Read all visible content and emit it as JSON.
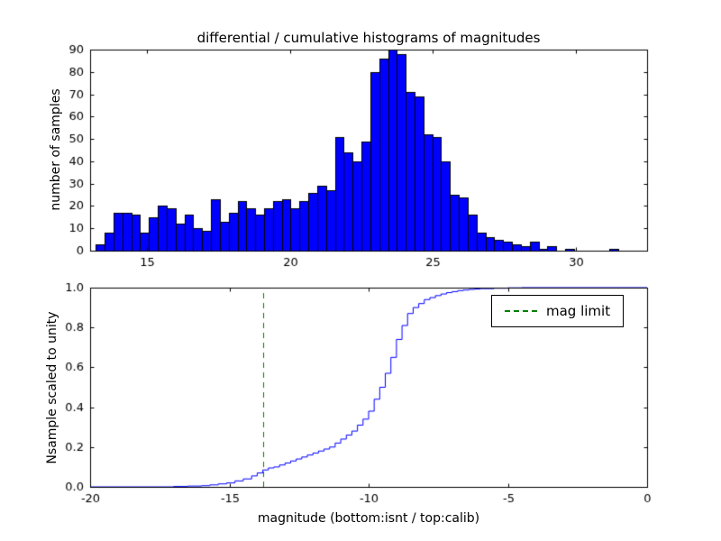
{
  "figure": {
    "title": "differential / cumulative histograms of magnitudes",
    "background": "#ffffff",
    "axes_color": "#000000"
  },
  "chart_data": [
    {
      "type": "bar",
      "role": "top-differential-histogram",
      "title": "differential / cumulative histograms of magnitudes",
      "ylabel": "number of samples",
      "xlim": [
        13,
        32.5
      ],
      "ylim": [
        0,
        90
      ],
      "xticks": [
        15,
        20,
        25,
        30
      ],
      "xtick_labels": [
        "15",
        "20",
        "25",
        "30"
      ],
      "yticks": [
        0,
        10,
        20,
        30,
        40,
        50,
        60,
        70,
        80,
        90
      ],
      "ytick_labels": [
        "0",
        "10",
        "20",
        "30",
        "40",
        "50",
        "60",
        "70",
        "80",
        "90"
      ],
      "bin_start": 13.2,
      "bin_width": 0.31,
      "counts": [
        3,
        8,
        17,
        17,
        16,
        8,
        15,
        20,
        19,
        12,
        16,
        10,
        9,
        23,
        13,
        17,
        22,
        19,
        16,
        19,
        22,
        23,
        19,
        22,
        26,
        29,
        27,
        51,
        44,
        40,
        49,
        80,
        86,
        90,
        88,
        71,
        69,
        52,
        51,
        40,
        25,
        24,
        16,
        8,
        6,
        5,
        4,
        3,
        2,
        4,
        1,
        2,
        0,
        1,
        0,
        0,
        0,
        0,
        1,
        0
      ],
      "bar_color": "#0000ff",
      "bar_edge_color": "#000000",
      "grid": false
    },
    {
      "type": "line",
      "role": "bottom-cumulative-histogram",
      "ylabel": "Nsample scaled to unity",
      "xlabel": "magnitude (bottom:isnt / top:calib)",
      "xlim": [
        -20,
        0
      ],
      "ylim": [
        0,
        1.0
      ],
      "xticks": [
        -20,
        -15,
        -10,
        -5,
        0
      ],
      "xtick_labels": [
        "-20",
        "-15",
        "-10",
        "-5",
        "0"
      ],
      "yticks": [
        0,
        0.2,
        0.4,
        0.6,
        0.8,
        1.0
      ],
      "ytick_labels": [
        "0.0",
        "0.2",
        "0.4",
        "0.6",
        "0.8",
        "1.0"
      ],
      "line_color": "#0000ff",
      "step": true,
      "points": [
        [
          -20,
          0
        ],
        [
          -17,
          0.002
        ],
        [
          -16.5,
          0.004
        ],
        [
          -16,
          0.006
        ],
        [
          -15.7,
          0.01
        ],
        [
          -15.4,
          0.015
        ],
        [
          -15.1,
          0.02
        ],
        [
          -14.8,
          0.03
        ],
        [
          -14.5,
          0.04
        ],
        [
          -14.2,
          0.055
        ],
        [
          -14,
          0.07
        ],
        [
          -13.8,
          0.085
        ],
        [
          -13.6,
          0.095
        ],
        [
          -13.4,
          0.1
        ],
        [
          -13.2,
          0.11
        ],
        [
          -13,
          0.12
        ],
        [
          -12.8,
          0.13
        ],
        [
          -12.6,
          0.14
        ],
        [
          -12.4,
          0.15
        ],
        [
          -12.2,
          0.16
        ],
        [
          -12,
          0.17
        ],
        [
          -11.8,
          0.18
        ],
        [
          -11.6,
          0.19
        ],
        [
          -11.4,
          0.2
        ],
        [
          -11.2,
          0.22
        ],
        [
          -11,
          0.24
        ],
        [
          -10.8,
          0.26
        ],
        [
          -10.6,
          0.28
        ],
        [
          -10.4,
          0.31
        ],
        [
          -10.2,
          0.34
        ],
        [
          -10,
          0.38
        ],
        [
          -9.8,
          0.44
        ],
        [
          -9.6,
          0.5
        ],
        [
          -9.4,
          0.57
        ],
        [
          -9.2,
          0.65
        ],
        [
          -9,
          0.74
        ],
        [
          -8.8,
          0.81
        ],
        [
          -8.6,
          0.87
        ],
        [
          -8.4,
          0.9
        ],
        [
          -8.2,
          0.92
        ],
        [
          -8,
          0.94
        ],
        [
          -7.8,
          0.95
        ],
        [
          -7.6,
          0.96
        ],
        [
          -7.4,
          0.968
        ],
        [
          -7.2,
          0.975
        ],
        [
          -7,
          0.98
        ],
        [
          -6.8,
          0.985
        ],
        [
          -6.6,
          0.988
        ],
        [
          -6.4,
          0.991
        ],
        [
          -6.2,
          0.993
        ],
        [
          -6,
          0.995
        ],
        [
          -5.5,
          0.997
        ],
        [
          -5,
          0.999
        ],
        [
          -4.5,
          1.0
        ],
        [
          0,
          1.0
        ]
      ],
      "mag_limit": {
        "x": -13.8,
        "color": "#008000",
        "style": "dashed",
        "label": "mag limit"
      },
      "legend": {
        "label": "mag limit",
        "position": "upper right"
      },
      "grid": false
    }
  ]
}
